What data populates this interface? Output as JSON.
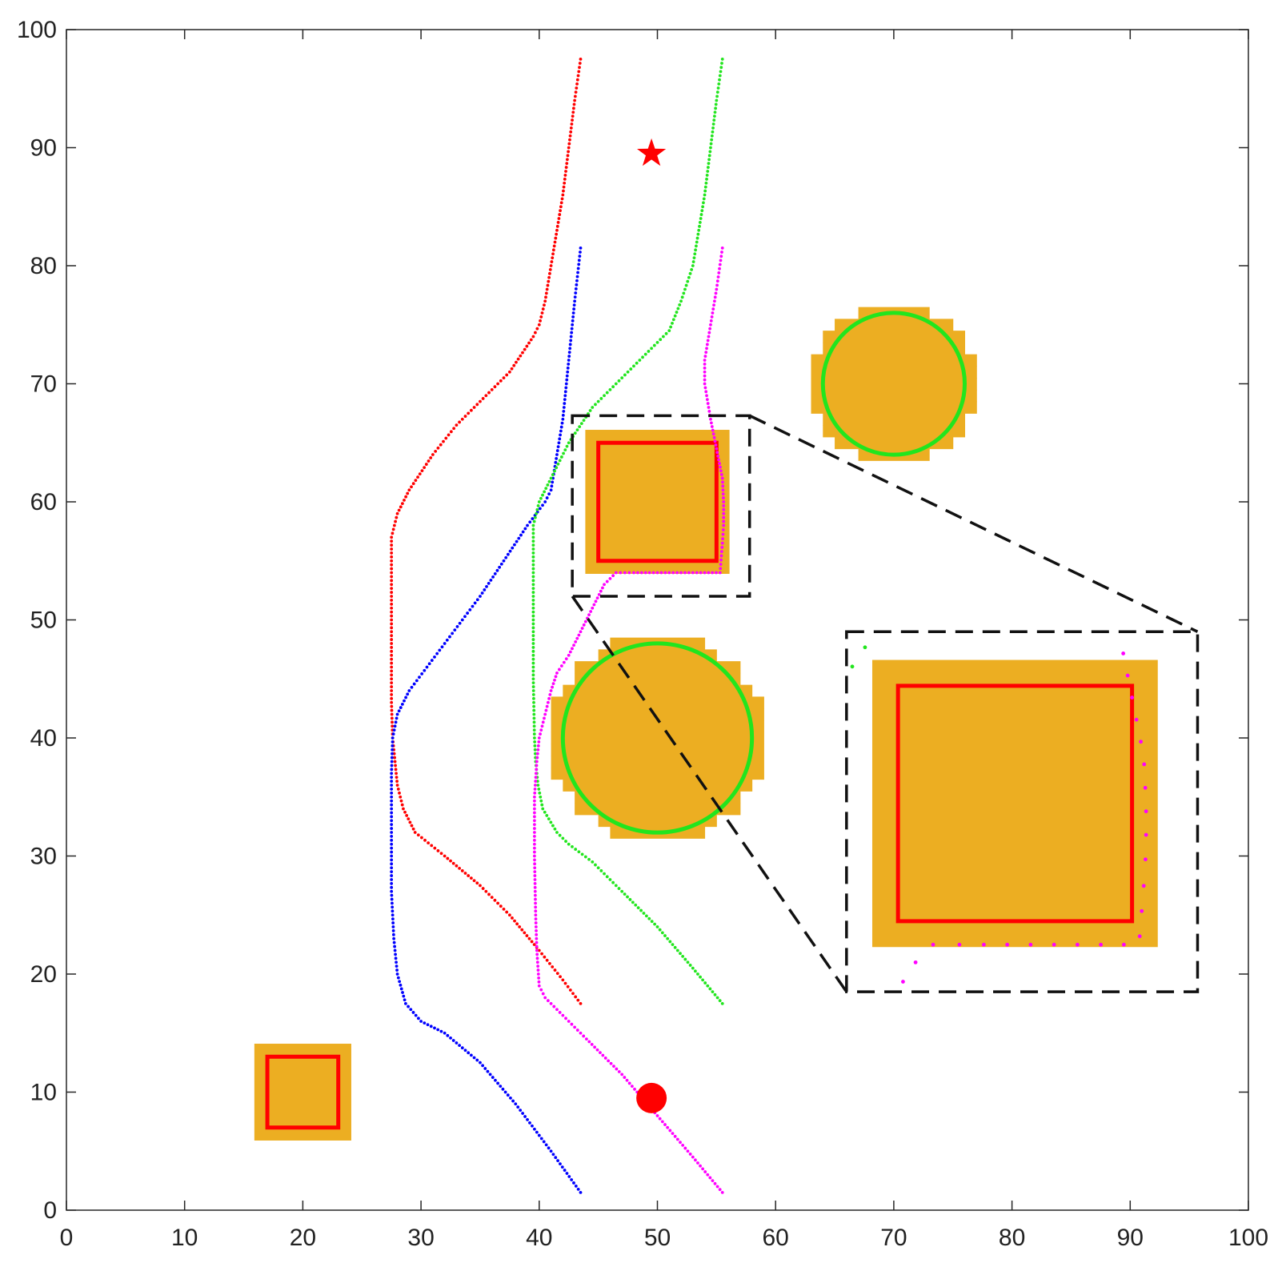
{
  "chart_data": {
    "type": "scatter",
    "title": "",
    "xlabel": "",
    "ylabel": "",
    "xlim": [
      0,
      100
    ],
    "ylim": [
      0,
      100
    ],
    "grid": false,
    "x_ticks": [
      "0",
      "10",
      "20",
      "30",
      "40",
      "50",
      "60",
      "70",
      "80",
      "90",
      "100"
    ],
    "y_ticks": [
      "0",
      "10",
      "20",
      "30",
      "40",
      "50",
      "60",
      "70",
      "80",
      "90",
      "100"
    ],
    "obstacles": {
      "fill_color": "#ECAE22",
      "squares": [
        {
          "center": [
            20,
            10
          ],
          "inner_half_size": 3,
          "outline_color": "#FF0000"
        },
        {
          "center": [
            50,
            60
          ],
          "inner_half_size": 5,
          "outline_color": "#FF0000"
        }
      ],
      "circles": [
        {
          "center": [
            50,
            40
          ],
          "radius": 8,
          "outline_color": "#22E51E"
        },
        {
          "center": [
            70,
            70
          ],
          "radius": 6,
          "outline_color": "#22E51E"
        }
      ]
    },
    "markers": {
      "start": {
        "shape": "circle",
        "x": 49.5,
        "y": 9.5,
        "color": "#FF0000"
      },
      "goal": {
        "shape": "star",
        "x": 49.5,
        "y": 89.5,
        "color": "#FF0000"
      }
    },
    "series": [
      {
        "color": "#FF0000",
        "points": [
          [
            43.5,
            17.5
          ],
          [
            42,
            19.5
          ],
          [
            40,
            22
          ],
          [
            37.5,
            25
          ],
          [
            35,
            27.5
          ],
          [
            32,
            30
          ],
          [
            29.5,
            32
          ],
          [
            28.5,
            34
          ],
          [
            28,
            36
          ],
          [
            27.8,
            38
          ],
          [
            27.6,
            40
          ],
          [
            27.5,
            43
          ],
          [
            27.5,
            46
          ],
          [
            27.5,
            50
          ],
          [
            27.5,
            54
          ],
          [
            27.5,
            57
          ],
          [
            28,
            59
          ],
          [
            29,
            61
          ],
          [
            31,
            64
          ],
          [
            33,
            66.5
          ],
          [
            35,
            68.5
          ],
          [
            37.5,
            71
          ],
          [
            39.5,
            74
          ],
          [
            40,
            75
          ],
          [
            40.5,
            77
          ],
          [
            41,
            80
          ],
          [
            41.5,
            83
          ],
          [
            42,
            86
          ],
          [
            42.5,
            90
          ],
          [
            43,
            94
          ],
          [
            43.5,
            97.5
          ]
        ]
      },
      {
        "color": "#0000FF",
        "points": [
          [
            43.5,
            1.5
          ],
          [
            41,
            5
          ],
          [
            38,
            9
          ],
          [
            35,
            12.5
          ],
          [
            32,
            15
          ],
          [
            30,
            16
          ],
          [
            28.7,
            17.5
          ],
          [
            28,
            20
          ],
          [
            27.7,
            23
          ],
          [
            27.5,
            27
          ],
          [
            27.5,
            32
          ],
          [
            27.5,
            37
          ],
          [
            27.6,
            40
          ],
          [
            28,
            42
          ],
          [
            29,
            44
          ],
          [
            30.5,
            46
          ],
          [
            32,
            48
          ],
          [
            33.5,
            50
          ],
          [
            35,
            52
          ],
          [
            37,
            55
          ],
          [
            39,
            58
          ],
          [
            40.5,
            60
          ],
          [
            41,
            61
          ],
          [
            41.5,
            64
          ],
          [
            42,
            67
          ],
          [
            42.5,
            72
          ],
          [
            43,
            77
          ],
          [
            43.5,
            81.5
          ]
        ]
      },
      {
        "color": "#22E51E",
        "points": [
          [
            55.5,
            17.5
          ],
          [
            53,
            20.5
          ],
          [
            50,
            24
          ],
          [
            47,
            27
          ],
          [
            44.5,
            29.5
          ],
          [
            42.5,
            31
          ],
          [
            41.5,
            32
          ],
          [
            40.3,
            34
          ],
          [
            39.9,
            36
          ],
          [
            39.7,
            38
          ],
          [
            39.6,
            40
          ],
          [
            39.5,
            45
          ],
          [
            39.5,
            50
          ],
          [
            39.5,
            55
          ],
          [
            39.5,
            58
          ],
          [
            40,
            60
          ],
          [
            41,
            62
          ],
          [
            42.5,
            65
          ],
          [
            44.5,
            68
          ],
          [
            46.5,
            70
          ],
          [
            48.5,
            72
          ],
          [
            51,
            74.5
          ],
          [
            52,
            77
          ],
          [
            53,
            80
          ],
          [
            53.5,
            83
          ],
          [
            54,
            86
          ],
          [
            54.5,
            90
          ],
          [
            55,
            94
          ],
          [
            55.5,
            97.5
          ]
        ]
      },
      {
        "color": "#FF00FF",
        "points": [
          [
            55.5,
            1.5
          ],
          [
            53,
            4.5
          ],
          [
            50,
            8
          ],
          [
            47,
            11.5
          ],
          [
            44,
            14.5
          ],
          [
            42,
            16.5
          ],
          [
            40.5,
            18
          ],
          [
            40,
            19
          ],
          [
            39.8,
            22
          ],
          [
            39.7,
            25
          ],
          [
            39.6,
            30
          ],
          [
            39.6,
            35
          ],
          [
            39.8,
            38
          ],
          [
            40,
            40
          ],
          [
            40.5,
            42
          ],
          [
            41,
            44
          ],
          [
            41.5,
            45.5
          ],
          [
            42.5,
            47
          ],
          [
            43.5,
            49
          ],
          [
            44.5,
            51
          ],
          [
            45.5,
            53
          ],
          [
            46.5,
            54
          ],
          [
            48,
            54
          ],
          [
            50,
            54
          ],
          [
            52,
            54
          ],
          [
            54,
            54
          ],
          [
            55.3,
            54
          ],
          [
            55.5,
            56.5
          ],
          [
            55.6,
            58
          ],
          [
            55.6,
            60
          ],
          [
            55.5,
            62
          ],
          [
            55,
            64.5
          ],
          [
            54.5,
            67
          ],
          [
            54,
            70
          ],
          [
            54,
            72
          ],
          [
            54.5,
            75
          ],
          [
            55,
            78
          ],
          [
            55.5,
            81.5
          ]
        ]
      }
    ]
  }
}
